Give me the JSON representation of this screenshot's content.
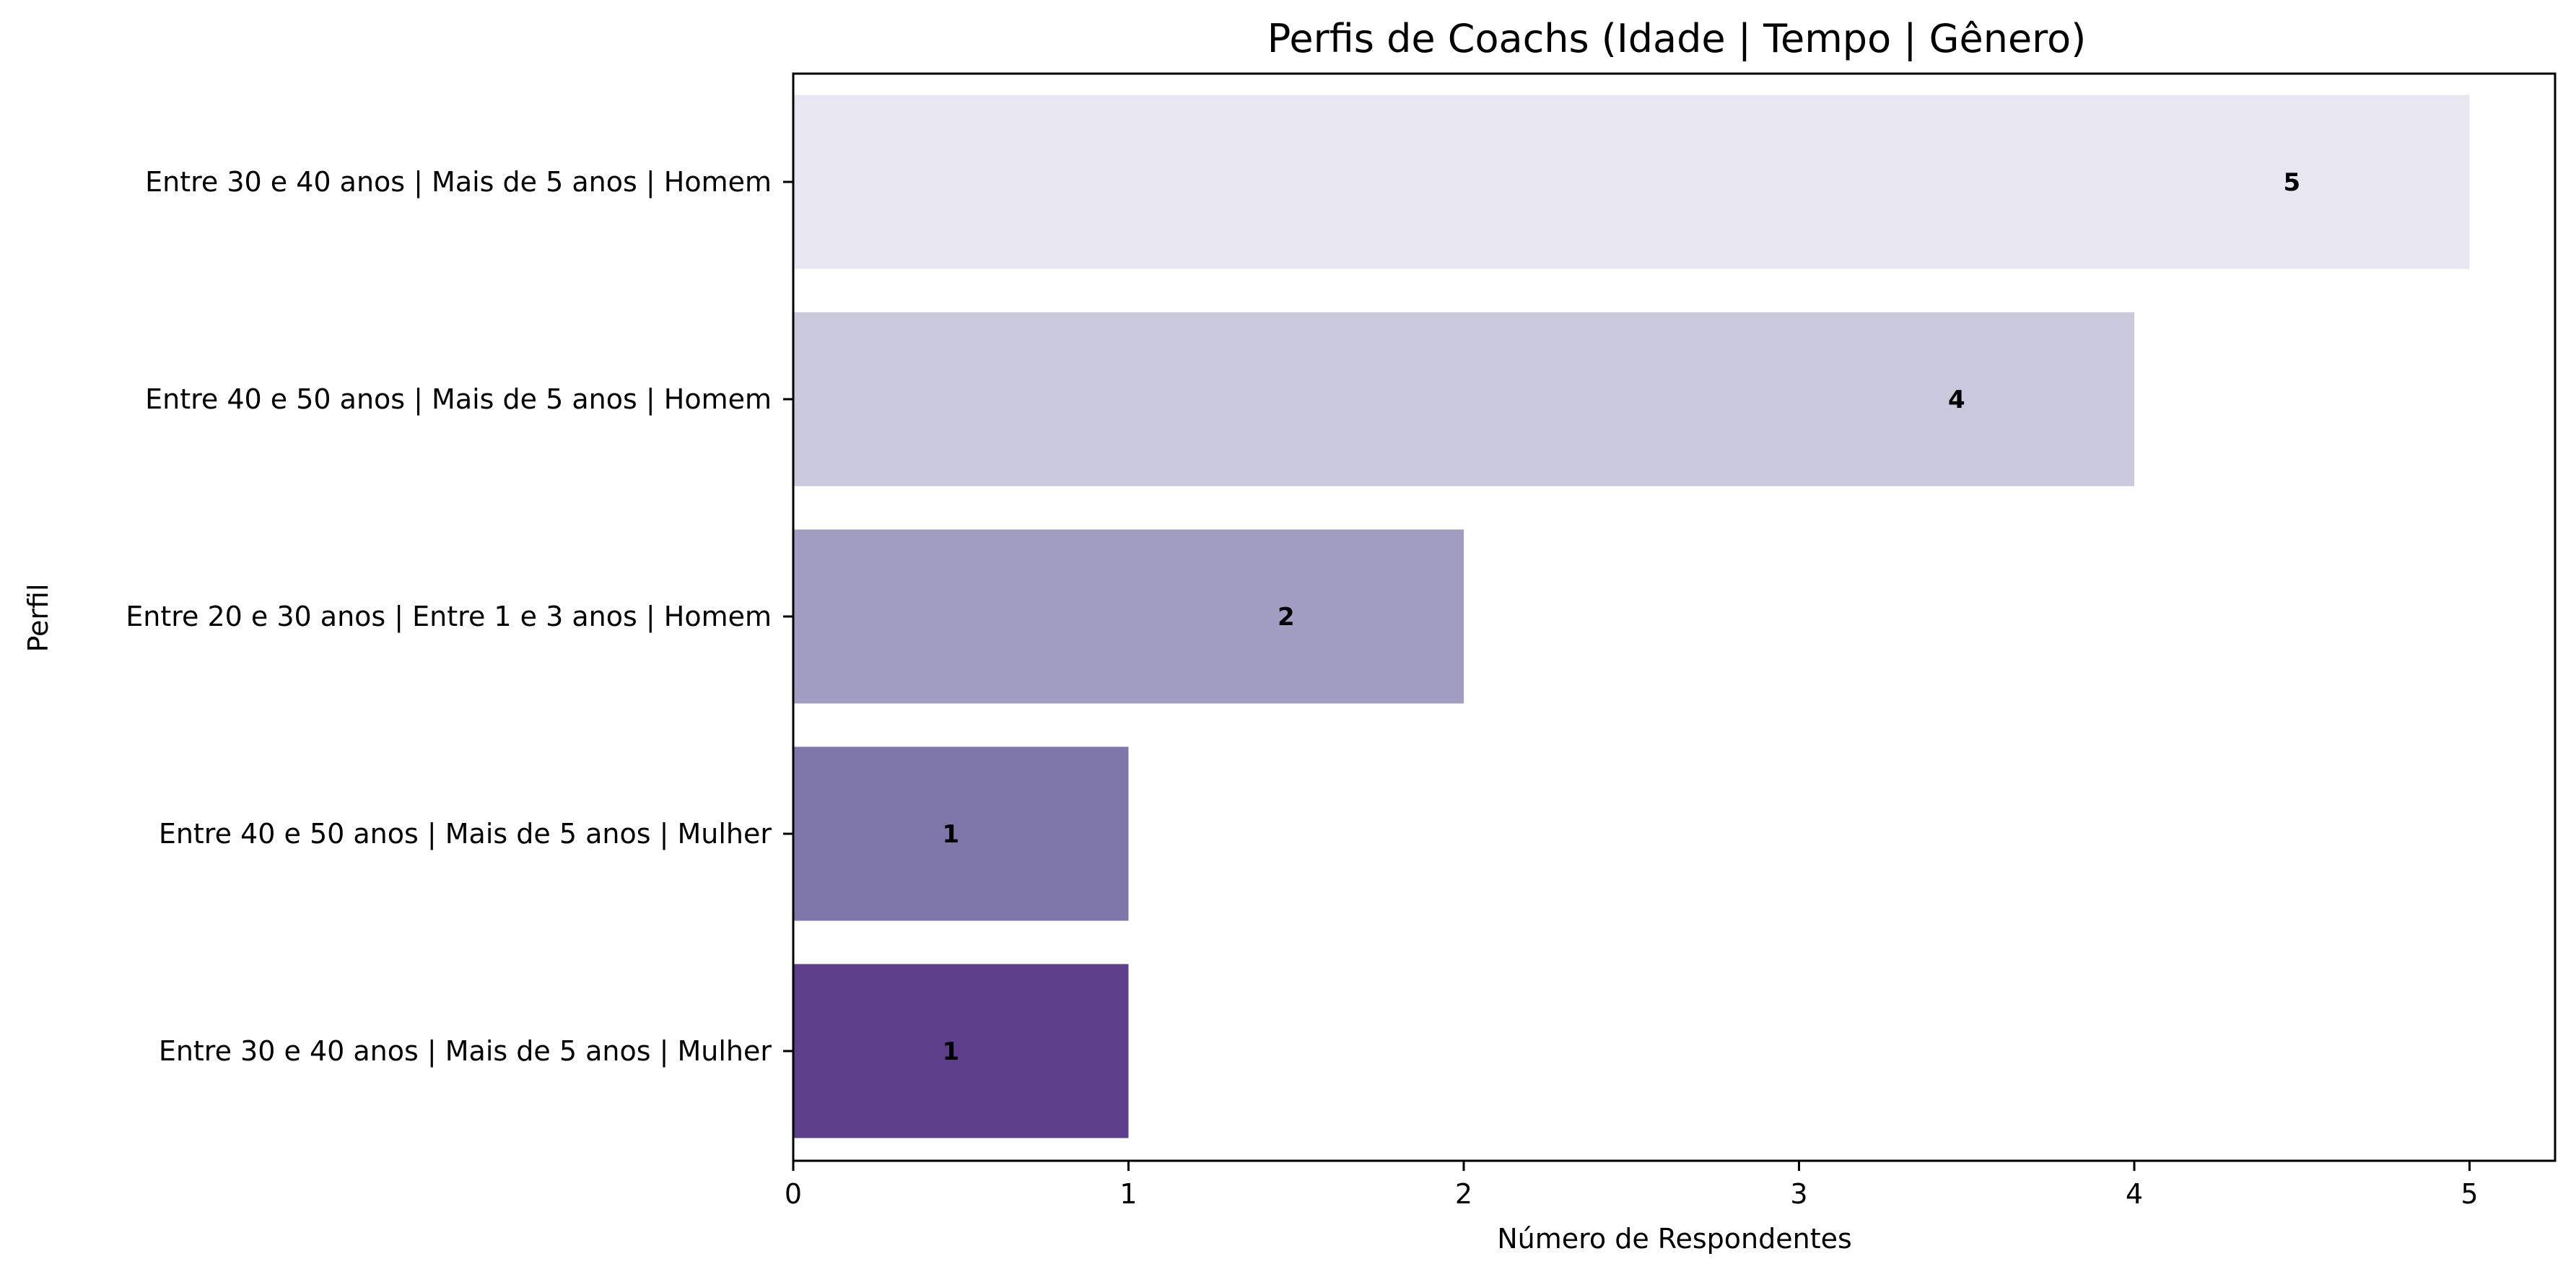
{
  "chart_data": {
    "type": "bar",
    "orientation": "horizontal",
    "title": "Perfis de Coachs (Idade | Tempo | Gênero)",
    "xlabel": "Número de Respondentes",
    "ylabel": "Perfil",
    "xlim": [
      0,
      5.25
    ],
    "xticks": [
      "0",
      "1",
      "2",
      "3",
      "4",
      "5"
    ],
    "categories": [
      "Entre 30 e 40 anos | Mais de 5 anos | Homem",
      "Entre 40 e 50 anos | Mais de 5 anos | Homem",
      "Entre 20 e 30 anos | Entre 1 e 3 anos | Homem",
      "Entre 40 e 50 anos | Mais de 5 anos | Mulher",
      "Entre 30 e 40 anos | Mais de 5 anos | Mulher"
    ],
    "values": [
      5,
      4,
      2,
      1,
      1
    ],
    "data_labels": [
      "5",
      "4",
      "2",
      "1",
      "1"
    ],
    "colors": [
      "#e8e6f1",
      "#c9c9de",
      "#a29ec3",
      "#7f77a9",
      "#5e3f8c"
    ],
    "grid": false,
    "legend": "none"
  }
}
